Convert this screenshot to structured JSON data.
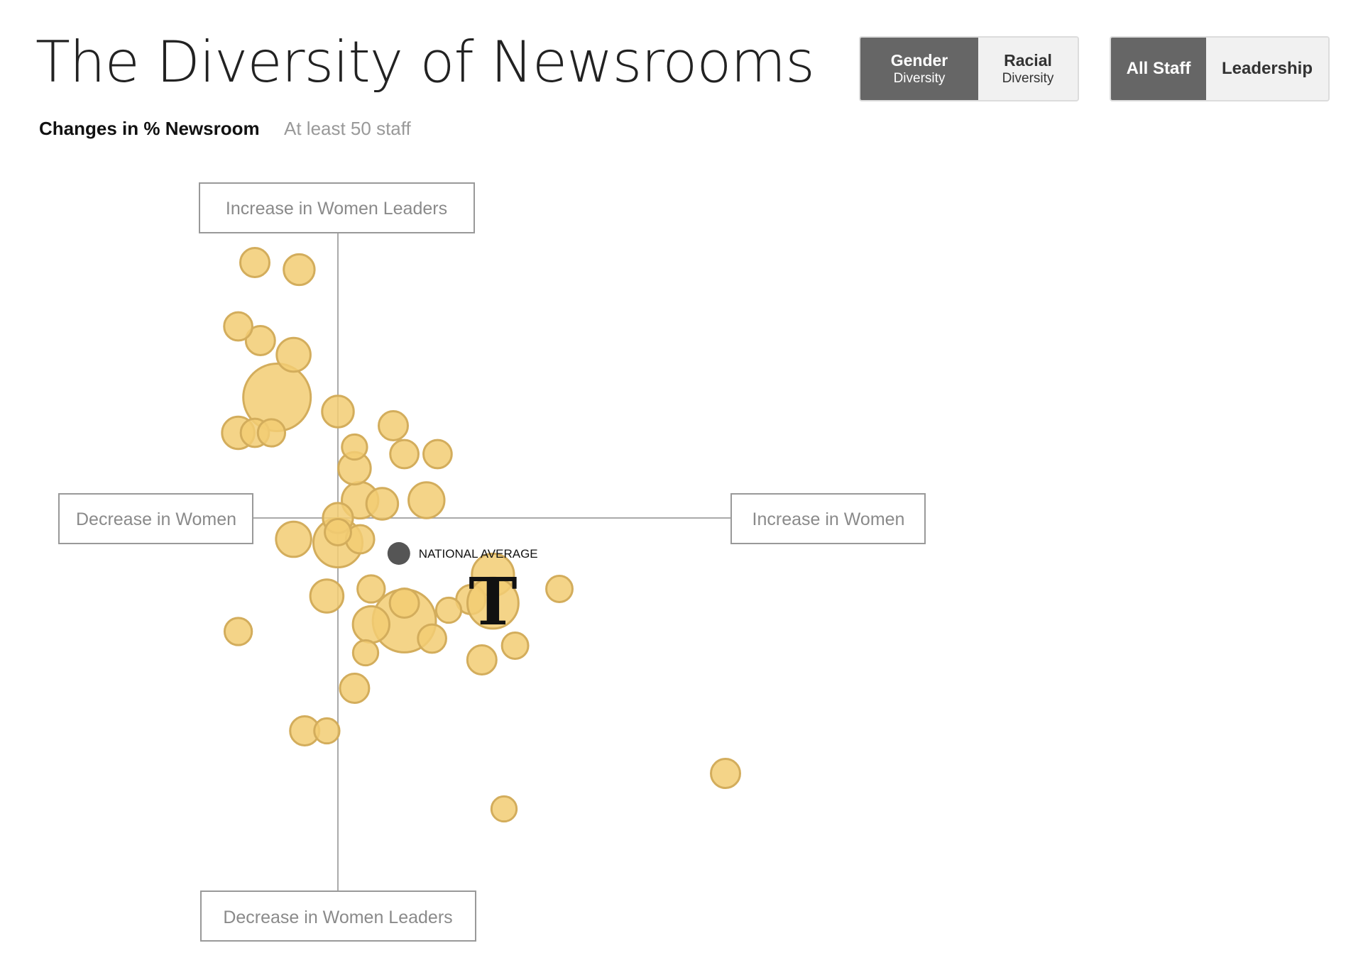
{
  "title": "The Diversity of Newsrooms",
  "subtitle": "Changes in % Newsroom",
  "staff_filter": "At least 50 staff",
  "toggles": {
    "diversity": [
      {
        "main": "Gender",
        "sub": "Diversity",
        "active": true
      },
      {
        "main": "Racial",
        "sub": "Diversity",
        "active": false
      }
    ],
    "staff": [
      {
        "main": "All Staff",
        "active": true
      },
      {
        "main": "Leadership",
        "active": false
      }
    ]
  },
  "quadrant_labels": {
    "top": "Increase in Women Leaders",
    "bottom": "Decrease in Women Leaders",
    "left": "Decrease in Women",
    "right": "Increase in Women"
  },
  "colors": {
    "bubble_fill": "#f2cc73",
    "bubble_stroke": "#d3ad5c",
    "national_average": "#555555",
    "axis": "#aaaaaa",
    "toggle_active": "#666666"
  },
  "chart_data": {
    "type": "scatter",
    "xlabel": "",
    "ylabel": "",
    "x_range": [
      -4.4,
      8.3
    ],
    "y_range": [
      -6.1,
      5.0
    ],
    "national_average": {
      "label": "NATIONAL AVERAGE",
      "x": 1.1,
      "y": -0.5
    },
    "highlight": {
      "name": "The New York Times",
      "icon": "nyt-t-logo-icon",
      "x": 2.8,
      "y": -1.2,
      "size": 50
    },
    "points": [
      {
        "x": -1.5,
        "y": 3.6,
        "size": 10
      },
      {
        "x": -0.7,
        "y": 3.5,
        "size": 12
      },
      {
        "x": -1.8,
        "y": 2.7,
        "size": 9
      },
      {
        "x": -1.4,
        "y": 2.5,
        "size": 10
      },
      {
        "x": -0.8,
        "y": 2.3,
        "size": 16
      },
      {
        "x": -1.1,
        "y": 1.7,
        "size": 100
      },
      {
        "x": 0.0,
        "y": 1.5,
        "size": 13
      },
      {
        "x": 1.0,
        "y": 1.3,
        "size": 10
      },
      {
        "x": -1.8,
        "y": 1.2,
        "size": 14
      },
      {
        "x": -1.5,
        "y": 1.2,
        "size": 9
      },
      {
        "x": -1.2,
        "y": 1.2,
        "size": 8
      },
      {
        "x": 0.3,
        "y": 1.0,
        "size": 6
      },
      {
        "x": 1.2,
        "y": 0.9,
        "size": 9
      },
      {
        "x": 1.8,
        "y": 0.9,
        "size": 9
      },
      {
        "x": 0.3,
        "y": 0.7,
        "size": 14
      },
      {
        "x": 0.4,
        "y": 0.25,
        "size": 20
      },
      {
        "x": 0.8,
        "y": 0.2,
        "size": 13
      },
      {
        "x": 1.6,
        "y": 0.25,
        "size": 19
      },
      {
        "x": 0.0,
        "y": 0.0,
        "size": 11
      },
      {
        "x": 0.0,
        "y": -0.2,
        "size": 7
      },
      {
        "x": 0.4,
        "y": -0.3,
        "size": 9
      },
      {
        "x": -0.8,
        "y": -0.3,
        "size": 18
      },
      {
        "x": 0.0,
        "y": -0.35,
        "size": 45
      },
      {
        "x": 0.6,
        "y": -1.0,
        "size": 8
      },
      {
        "x": -0.2,
        "y": -1.1,
        "size": 15
      },
      {
        "x": 1.2,
        "y": -1.2,
        "size": 10
      },
      {
        "x": 2.4,
        "y": -1.15,
        "size": 10
      },
      {
        "x": 2.8,
        "y": -0.8,
        "size": 30
      },
      {
        "x": 4.0,
        "y": -1.0,
        "size": 7
      },
      {
        "x": 2.0,
        "y": -1.3,
        "size": 6
      },
      {
        "x": 0.6,
        "y": -1.5,
        "size": 20
      },
      {
        "x": 1.2,
        "y": -1.45,
        "size": 85
      },
      {
        "x": 1.7,
        "y": -1.7,
        "size": 9
      },
      {
        "x": 3.2,
        "y": -1.8,
        "size": 7
      },
      {
        "x": -1.8,
        "y": -1.6,
        "size": 8
      },
      {
        "x": 0.5,
        "y": -1.9,
        "size": 6
      },
      {
        "x": 2.6,
        "y": -2.0,
        "size": 10
      },
      {
        "x": 0.3,
        "y": -2.4,
        "size": 10
      },
      {
        "x": -0.6,
        "y": -3.0,
        "size": 10
      },
      {
        "x": -0.2,
        "y": -3.0,
        "size": 6
      },
      {
        "x": 7.0,
        "y": -3.6,
        "size": 10
      },
      {
        "x": 3.0,
        "y": -4.1,
        "size": 6
      }
    ]
  }
}
